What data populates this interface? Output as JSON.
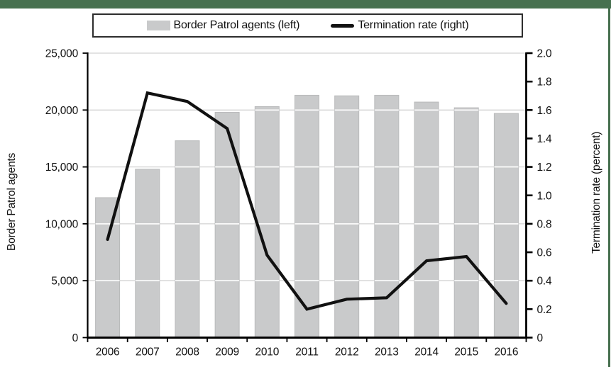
{
  "figure": {
    "accent_green": "#47704F",
    "background": "#ffffff",
    "bar_fill": "#c9cacb",
    "bar_edge": "#b9babb",
    "line_color": "#111111",
    "gridline_color": "#d2d2d2",
    "gridline_over_bars_color": "#ffffff",
    "axis_color": "#000000"
  },
  "legend": {
    "position": "top",
    "items": [
      {
        "label": "Border Patrol agents (left)",
        "swatch": "bar-swatch",
        "color": "#c9cacb"
      },
      {
        "label": "Termination rate (right)",
        "swatch": "line-swatch",
        "color": "#111111"
      }
    ]
  },
  "chart_data": {
    "type": "bar",
    "subtype": "combo bar+line, dual axis",
    "title": "",
    "categories": [
      "2006",
      "2007",
      "2008",
      "2009",
      "2010",
      "2011",
      "2012",
      "2013",
      "2014",
      "2015",
      "2016"
    ],
    "series": [
      {
        "name": "Border Patrol agents (left)",
        "type": "bar",
        "axis": "left",
        "color": "#c9cacb",
        "values": [
          12300,
          14800,
          17300,
          19800,
          20300,
          21300,
          21250,
          21300,
          20700,
          20200,
          19700
        ]
      },
      {
        "name": "Termination rate (right)",
        "type": "line",
        "axis": "right",
        "color": "#111111",
        "values": [
          0.69,
          1.72,
          1.66,
          1.47,
          0.58,
          0.2,
          0.27,
          0.28,
          0.54,
          0.57,
          0.24
        ]
      }
    ],
    "left_axis": {
      "title": "Border Patrol agents",
      "min": 0,
      "max": 25000,
      "tick_step": 5000,
      "tick_labels": [
        "0",
        "5,000",
        "10,000",
        "15,000",
        "20,000",
        "25,000"
      ]
    },
    "right_axis": {
      "title": "Termination rate (percent)",
      "min": 0,
      "max": 2.0,
      "tick_step": 0.2,
      "tick_labels": [
        "0",
        "0.2",
        "0.4",
        "0.6",
        "0.8",
        "1.0",
        "1.2",
        "1.4",
        "1.6",
        "1.8",
        "2.0"
      ]
    },
    "grid": "horizontal gridlines every 5,000 (gray over background, white where crossing bars); no vertical gridlines",
    "legend_position": "top center, boxed"
  }
}
